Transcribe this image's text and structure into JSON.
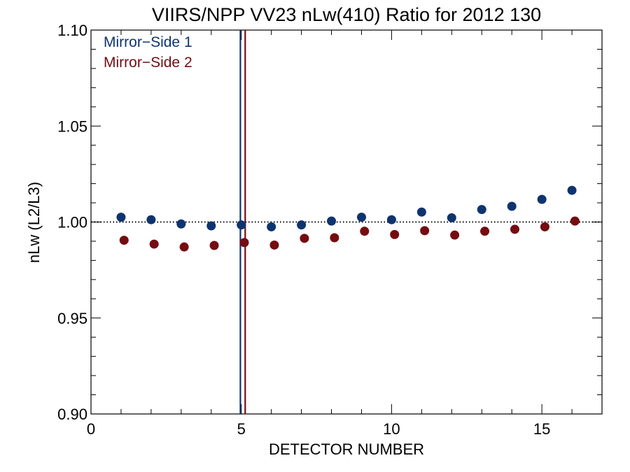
{
  "chart_data": {
    "type": "scatter",
    "title": "VIIRS/NPP VV23 nLw(410) Ratio for 2012 130",
    "xlabel": "DETECTOR NUMBER",
    "ylabel": "nLw (L2/L3)",
    "xlim": [
      0,
      17
    ],
    "ylim": [
      0.9,
      1.1
    ],
    "xticks": [
      0,
      5,
      10,
      15
    ],
    "xtick_labels": [
      "0",
      "5",
      "10",
      "15"
    ],
    "yticks": [
      0.9,
      0.95,
      1.0,
      1.05,
      1.1
    ],
    "ytick_labels": [
      "0.90",
      "0.95",
      "1.00",
      "1.05",
      "1.10"
    ],
    "reference_line": {
      "y": 1.0,
      "style": "dotted"
    },
    "legend_position": "top-left",
    "series": [
      {
        "name": "Mirror−Side 1",
        "color": "#0e3470",
        "x": [
          1,
          2,
          3,
          4,
          5,
          6,
          7,
          8,
          9,
          10,
          11,
          12,
          13,
          14,
          15,
          16
        ],
        "y": [
          1.0025,
          1.0012,
          0.999,
          0.998,
          0.9985,
          0.9975,
          0.9985,
          1.0005,
          1.0025,
          1.0012,
          1.0052,
          1.0022,
          1.0065,
          1.0082,
          1.0118,
          1.0165
        ],
        "vertical_marker_x": 4.97
      },
      {
        "name": "Mirror−Side 2",
        "color": "#750c12",
        "x": [
          1.1,
          2.1,
          3.1,
          4.1,
          5.1,
          6.1,
          7.1,
          8.1,
          9.1,
          10.1,
          11.1,
          12.1,
          13.1,
          14.1,
          15.1,
          16.1
        ],
        "y": [
          0.9905,
          0.9885,
          0.987,
          0.9878,
          0.9893,
          0.988,
          0.9915,
          0.9918,
          0.9952,
          0.9935,
          0.9955,
          0.9932,
          0.9952,
          0.9962,
          0.9975,
          1.0005
        ],
        "vertical_marker_x": 5.13
      }
    ]
  }
}
